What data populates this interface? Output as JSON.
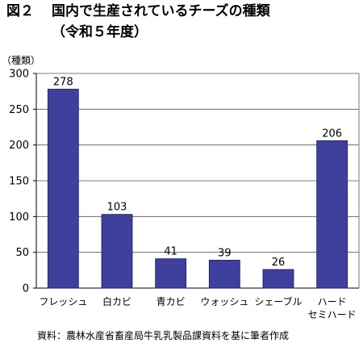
{
  "header": {
    "figure_label": "図２",
    "title": "国内で生産されているチーズの種類",
    "subtitle": "（令和５年度）"
  },
  "source_note": "資料：農林水産省畜産局牛乳乳製品課資料を基に筆者作成",
  "colors": {
    "bar": "#3f3f9e",
    "axis": "#000000",
    "grid": "#555555"
  },
  "chart_data": {
    "type": "bar",
    "unit_label": "（種類）",
    "categories": [
      "フレッシュ",
      "白カビ",
      "青カビ",
      "ウォッシュ",
      "シェーブル",
      "ハード\nセミハード"
    ],
    "values": [
      278,
      103,
      41,
      39,
      26,
      206
    ],
    "ylim": [
      0,
      300
    ],
    "yticks": [
      0,
      50,
      100,
      150,
      200,
      250,
      300
    ],
    "grid": true,
    "legend": "none"
  }
}
